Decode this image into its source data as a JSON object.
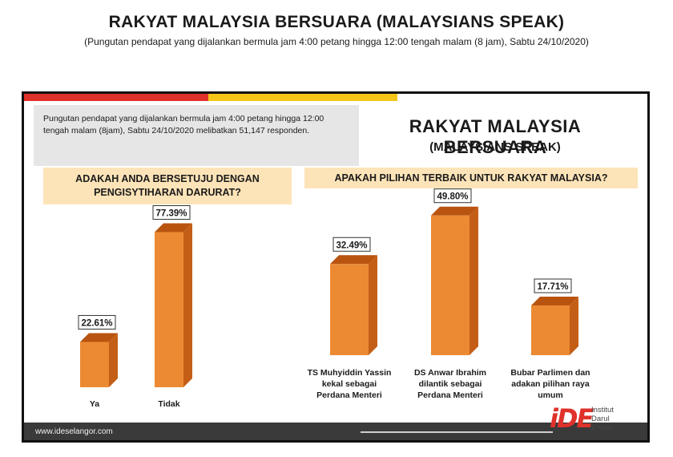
{
  "header": {
    "title": "RAKYAT MALAYSIA BERSUARA (MALAYSIANS SPEAK)",
    "subtitle": "(Pungutan pendapat yang dijalankan bermula jam 4:00 petang hingga 12:00 tengah malam (8 jam), Sabtu 24/10/2020)"
  },
  "panel": {
    "note": "Pungutan pendapat yang dijalankan bermula jam 4:00 petang hingga 12:00 tengah malam (8jam), Sabtu 24/10/2020 melibatkan 51,147 responden.",
    "title": "RAKYAT MALAYSIA BERSUARA",
    "subtitle": "(MALAYSIANS SPEAK)"
  },
  "footer": {
    "url": "www.ideselangor.com",
    "logo_mark": "iDE",
    "logo_line1": "Institut",
    "logo_line2": "Darul",
    "logo_line3": "Ehsan"
  },
  "colors": {
    "bar_front": "#ec8a33",
    "bar_side": "#c45e17",
    "bar_top": "#b85410",
    "accent_red": "#e0312b",
    "accent_yellow": "#f5c518",
    "question_bg": "#fde4b8"
  },
  "chart_data": [
    {
      "type": "bar",
      "title": "ADAKAH ANDA BERSETUJU DENGAN PENGISYTIHARAN DARURAT?",
      "categories": [
        "Ya",
        "Tidak"
      ],
      "values": [
        22.61,
        77.39
      ],
      "labels": [
        "22.61%",
        "77.39%"
      ],
      "ylim": [
        0,
        100
      ]
    },
    {
      "type": "bar",
      "title": "APAKAH PILIHAN TERBAIK UNTUK RAKYAT MALAYSIA?",
      "categories": [
        [
          "TS Muhyiddin Yassin",
          "kekal sebagai",
          "Perdana Menteri"
        ],
        [
          "DS Anwar Ibrahim",
          "dilantik sebagai",
          "Perdana Menteri"
        ],
        [
          "Bubar Parlimen dan",
          "adakan pilihan raya",
          "umum"
        ]
      ],
      "values": [
        32.49,
        49.8,
        17.71
      ],
      "labels": [
        "32.49%",
        "49.80%",
        "17.71%"
      ],
      "ylim": [
        0,
        100
      ]
    }
  ]
}
